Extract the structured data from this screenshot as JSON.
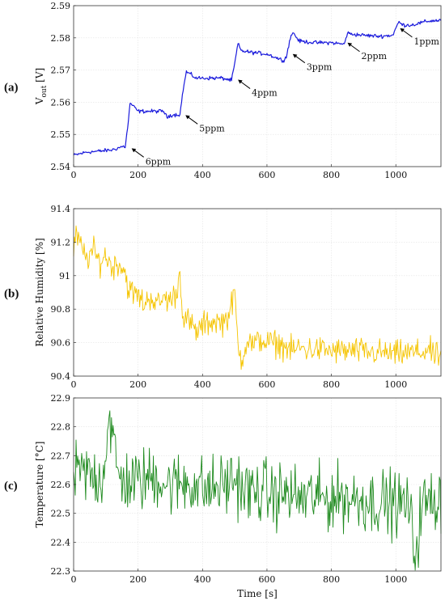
{
  "chart_data": [
    {
      "type": "line",
      "panel_label": "(a)",
      "ylabel": "V",
      "ylabel_sub": "out",
      "ylabel_unit": "[V]",
      "xlabel": "",
      "xlim": [
        0,
        1140
      ],
      "ylim": [
        2.54,
        2.59
      ],
      "xticks": [
        0,
        200,
        400,
        600,
        800,
        1000
      ],
      "yticks": [
        2.54,
        2.55,
        2.56,
        2.57,
        2.58,
        2.59
      ],
      "ytick_labels": [
        "2.54",
        "2.55",
        "2.56",
        "2.57",
        "2.58",
        "2.59"
      ],
      "grid": true,
      "series": [
        {
          "color": "#1a1adc",
          "x": [
            0,
            40,
            80,
            120,
            150,
            160,
            170,
            175,
            200,
            250,
            280,
            290,
            300,
            330,
            340,
            350,
            380,
            420,
            460,
            490,
            500,
            510,
            520,
            550,
            600,
            650,
            660,
            670,
            680,
            700,
            750,
            800,
            840,
            845,
            850,
            860,
            900,
            950,
            990,
            1000,
            1010,
            1020,
            1050,
            1100,
            1140
          ],
          "values": [
            2.5435,
            2.5445,
            2.5448,
            2.5452,
            2.5462,
            2.5462,
            2.554,
            2.5598,
            2.5572,
            2.5572,
            2.5572,
            2.5552,
            2.556,
            2.5562,
            2.564,
            2.5695,
            2.5675,
            2.5675,
            2.5675,
            2.5668,
            2.572,
            2.5782,
            2.576,
            2.5755,
            2.575,
            2.573,
            2.574,
            2.579,
            2.5818,
            2.579,
            2.5785,
            2.5785,
            2.578,
            2.58,
            2.5815,
            2.5812,
            2.5808,
            2.5805,
            2.5808,
            2.583,
            2.585,
            2.584,
            2.584,
            2.5852,
            2.5855
          ]
        }
      ],
      "annotations": [
        {
          "text": "6ppm",
          "x": 170,
          "y": 2.5462
        },
        {
          "text": "5ppm",
          "x": 337,
          "y": 2.5565
        },
        {
          "text": "4ppm",
          "x": 500,
          "y": 2.5675
        },
        {
          "text": "3ppm",
          "x": 670,
          "y": 2.5755
        },
        {
          "text": "2ppm",
          "x": 840,
          "y": 2.579
        },
        {
          "text": "1ppm",
          "x": 1003,
          "y": 2.5835
        }
      ]
    },
    {
      "type": "line",
      "panel_label": "(b)",
      "ylabel": "Relative Humidity [%]",
      "xlabel": "",
      "xlim": [
        0,
        1140
      ],
      "ylim": [
        90.4,
        91.4
      ],
      "xticks": [
        0,
        200,
        400,
        600,
        800,
        1000
      ],
      "yticks": [
        90.4,
        90.6,
        90.8,
        91.0,
        91.2,
        91.4
      ],
      "ytick_labels": [
        "90.4",
        "90.6",
        "90.8",
        "91",
        "91.2",
        "91.4"
      ],
      "grid": true,
      "series": [
        {
          "color": "#f5c400",
          "x": [
            0,
            10,
            20,
            40,
            60,
            80,
            100,
            120,
            140,
            160,
            170,
            180,
            200,
            220,
            240,
            260,
            280,
            300,
            320,
            330,
            340,
            360,
            380,
            400,
            420,
            440,
            460,
            480,
            490,
            500,
            510,
            520,
            540,
            560,
            580,
            600,
            640,
            680,
            700,
            720,
            760,
            800,
            840,
            880,
            920,
            960,
            1000,
            1040,
            1080,
            1100,
            1120,
            1140
          ],
          "values": [
            91.15,
            91.25,
            91.18,
            91.1,
            91.15,
            91.08,
            91.12,
            91.05,
            91.08,
            91.02,
            90.92,
            90.9,
            90.88,
            90.83,
            90.88,
            90.82,
            90.87,
            90.85,
            90.9,
            91.02,
            90.75,
            90.72,
            90.66,
            90.7,
            90.72,
            90.73,
            90.72,
            90.76,
            90.82,
            90.9,
            90.58,
            90.5,
            90.62,
            90.58,
            90.62,
            90.6,
            90.59,
            90.55,
            90.57,
            90.56,
            90.56,
            90.55,
            90.55,
            90.55,
            90.54,
            90.54,
            90.53,
            90.54,
            90.54,
            90.56,
            90.52,
            90.52
          ]
        }
      ]
    },
    {
      "type": "line",
      "panel_label": "(c)",
      "ylabel": "Temperature [°C]",
      "xlabel": "Time [s]",
      "xlim": [
        0,
        1140
      ],
      "ylim": [
        22.3,
        22.9
      ],
      "xticks": [
        0,
        200,
        400,
        600,
        800,
        1000
      ],
      "yticks": [
        22.3,
        22.4,
        22.5,
        22.6,
        22.7,
        22.8,
        22.9
      ],
      "ytick_labels": [
        "22.3",
        "22.4",
        "22.5",
        "22.6",
        "22.7",
        "22.8",
        "22.9"
      ],
      "grid": true,
      "series": [
        {
          "color": "#1e8a1e",
          "x": [
            0,
            30,
            60,
            90,
            110,
            140,
            170,
            200,
            230,
            260,
            290,
            320,
            350,
            380,
            410,
            440,
            470,
            500,
            530,
            560,
            590,
            620,
            650,
            680,
            710,
            740,
            770,
            800,
            830,
            860,
            890,
            920,
            950,
            980,
            1010,
            1040,
            1060,
            1080,
            1110,
            1140
          ],
          "values": [
            22.63,
            22.64,
            22.63,
            22.62,
            22.84,
            22.62,
            22.61,
            22.61,
            22.62,
            22.63,
            22.6,
            22.6,
            22.61,
            22.6,
            22.58,
            22.59,
            22.6,
            22.62,
            22.58,
            22.57,
            22.58,
            22.56,
            22.57,
            22.56,
            22.55,
            22.56,
            22.55,
            22.55,
            22.56,
            22.55,
            22.55,
            22.54,
            22.54,
            22.54,
            22.53,
            22.53,
            22.34,
            22.53,
            22.54,
            22.55
          ]
        }
      ]
    }
  ],
  "x_tick_labels": [
    "0",
    "200",
    "400",
    "600",
    "800",
    "1000"
  ]
}
